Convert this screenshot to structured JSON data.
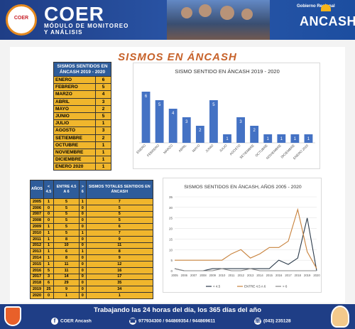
{
  "header": {
    "logo_text": "COER",
    "brand": "COER",
    "subtitle_line1": "MÓDULO DE MONITOREO",
    "subtitle_line2": "Y ANÁLISIS",
    "gob_label": "Gobierno Regional",
    "gob_name": "ANCASH"
  },
  "page_title": "SISMOS EN ÁNCASH",
  "monthly_table": {
    "header": "SISMOS SENTIDOS EN ÁNCASH 2019 - 2020",
    "rows": [
      {
        "label": "ENERO",
        "value": "6"
      },
      {
        "label": "FEBRERO",
        "value": "5"
      },
      {
        "label": "MARZO",
        "value": "4"
      },
      {
        "label": "ABRIL",
        "value": "3"
      },
      {
        "label": "MAYO",
        "value": "2"
      },
      {
        "label": "JUNIO",
        "value": "5"
      },
      {
        "label": "JULIO",
        "value": "1"
      },
      {
        "label": "AGOSTO",
        "value": "3"
      },
      {
        "label": "SETIEMBRE",
        "value": "2"
      },
      {
        "label": "OCTUBRE",
        "value": "1"
      },
      {
        "label": "NOVIEMBRE",
        "value": "1"
      },
      {
        "label": "DICIEMBRE",
        "value": "1"
      },
      {
        "label": "ENERO 2020",
        "value": "1"
      }
    ]
  },
  "yearly_table": {
    "headers": [
      "AÑOS",
      "< 4.5",
      "ENTRE 4.5 A 6",
      "> 6",
      "SISMOS TOTALES SENTIDOS EN ÁNCASH"
    ],
    "rows": [
      [
        "2005",
        "1",
        "5",
        "1",
        "7"
      ],
      [
        "2006",
        "0",
        "5",
        "0",
        "5"
      ],
      [
        "2007",
        "0",
        "5",
        "0",
        "5"
      ],
      [
        "2008",
        "0",
        "5",
        "0",
        "5"
      ],
      [
        "2009",
        "1",
        "5",
        "0",
        "6"
      ],
      [
        "2010",
        "1",
        "5",
        "1",
        "7"
      ],
      [
        "2011",
        "1",
        "8",
        "0",
        "9"
      ],
      [
        "2012",
        "1",
        "10",
        "0",
        "11"
      ],
      [
        "2013",
        "1",
        "6",
        "1",
        "8"
      ],
      [
        "2014",
        "1",
        "8",
        "0",
        "9"
      ],
      [
        "2015",
        "1",
        "11",
        "0",
        "12"
      ],
      [
        "2016",
        "5",
        "11",
        "0",
        "16"
      ],
      [
        "2017",
        "3",
        "14",
        "0",
        "17"
      ],
      [
        "2018",
        "6",
        "29",
        "0",
        "35"
      ],
      [
        "2019",
        "25",
        "9",
        "0",
        "34"
      ],
      [
        "2020",
        "0",
        "1",
        "0",
        "1"
      ]
    ]
  },
  "chart_data": [
    {
      "type": "bar",
      "title": "SISMO SENTIDO EN ÁNCASH 2019 - 2020",
      "xlabel": "",
      "ylabel": "",
      "categories": [
        "ENERO",
        "FEBRERO",
        "MARZO",
        "ABRIL",
        "MAYO",
        "JUNIO",
        "JULIO",
        "AGOSTO",
        "SETIEMBRE",
        "OCTUBRE",
        "NOVIEMBRE",
        "DICIEMBRE",
        "ENERO 2020"
      ],
      "values": [
        6,
        5,
        4,
        3,
        2,
        5,
        1,
        3,
        2,
        1,
        1,
        1,
        1
      ],
      "ylim": [
        0,
        7
      ],
      "grid": false,
      "color": "#4472c4"
    },
    {
      "type": "line",
      "title": "SISMOS SENTIDOS EN ÁNCASH, AÑOS 2005 - 2020",
      "x": [
        "2005",
        "2006",
        "2007",
        "2008",
        "2009",
        "2010",
        "2011",
        "2012",
        "2013",
        "2014",
        "2015",
        "2016",
        "2017",
        "2018",
        "2019",
        "2020"
      ],
      "series": [
        {
          "name": "< 4.5",
          "values": [
            1,
            0,
            0,
            0,
            1,
            1,
            1,
            1,
            1,
            1,
            1,
            5,
            3,
            6,
            25,
            0
          ],
          "color": "#2b3a4a"
        },
        {
          "name": "ENTRE 4.5 A 6",
          "values": [
            5,
            5,
            5,
            5,
            5,
            5,
            8,
            10,
            6,
            8,
            11,
            11,
            14,
            29,
            9,
            1
          ],
          "color": "#c8823c"
        },
        {
          "name": "> 6",
          "values": [
            1,
            0,
            0,
            0,
            0,
            1,
            0,
            0,
            1,
            0,
            0,
            0,
            0,
            0,
            0,
            0
          ],
          "color": "#888888"
        }
      ],
      "yticks": [
        "0",
        "5",
        "10",
        "15",
        "20",
        "25",
        "30",
        "35"
      ],
      "ylim": [
        0,
        35
      ],
      "grid": true,
      "legend": "bottom"
    }
  ],
  "footer": {
    "tagline": "Trabajando las 24 horas del día, los 365 días del año",
    "facebook": "COER Ancash",
    "phones": "977934300 / 944869354 / 944869611",
    "landline": "(043) 235128"
  }
}
